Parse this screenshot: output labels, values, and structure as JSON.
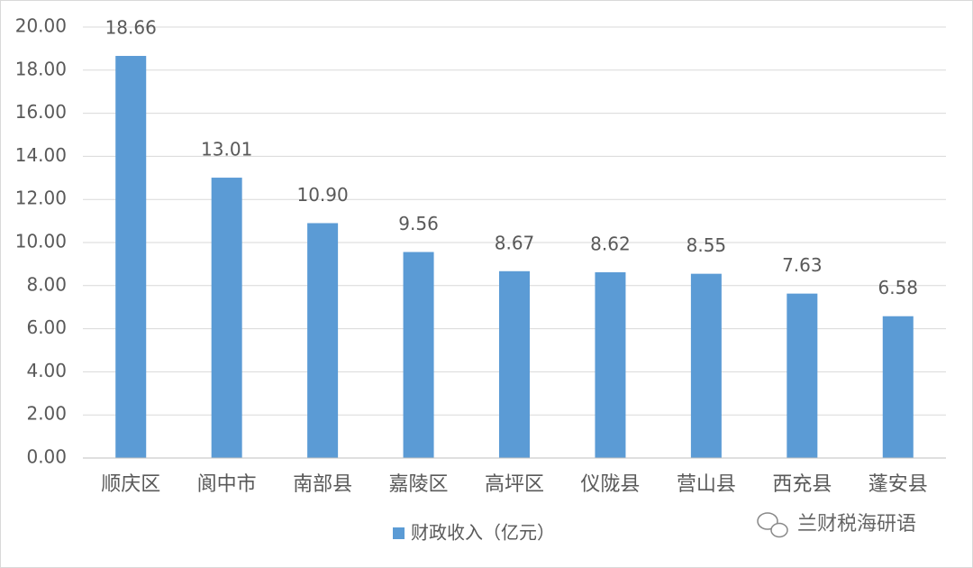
{
  "chart_data": {
    "type": "bar",
    "categories": [
      "顺庆区",
      "阆中市",
      "南部县",
      "嘉陵区",
      "高坪区",
      "仪陇县",
      "营山县",
      "西充县",
      "蓬安县"
    ],
    "series": [
      {
        "name": "财政收入（亿元）",
        "color": "#5b9bd5",
        "values": [
          18.66,
          13.01,
          10.9,
          9.56,
          8.67,
          8.62,
          8.55,
          7.63,
          6.58
        ],
        "value_labels": [
          "18.66",
          "13.01",
          "10.90",
          "9.56",
          "8.67",
          "8.62",
          "8.55",
          "7.63",
          "6.58"
        ]
      }
    ],
    "ylim": [
      0,
      20
    ],
    "yticks": [
      {
        "value": 0,
        "label": "0.00"
      },
      {
        "value": 2,
        "label": "2.00"
      },
      {
        "value": 4,
        "label": "4.00"
      },
      {
        "value": 6,
        "label": "6.00"
      },
      {
        "value": 8,
        "label": "8.00"
      },
      {
        "value": 10,
        "label": "10.00"
      },
      {
        "value": 12,
        "label": "12.00"
      },
      {
        "value": 14,
        "label": "14.00"
      },
      {
        "value": 16,
        "label": "16.00"
      },
      {
        "value": 18,
        "label": "18.00"
      },
      {
        "value": 20,
        "label": "20.00"
      }
    ],
    "grid": true,
    "legend": "bottom",
    "watermark": "兰财税海研语"
  }
}
